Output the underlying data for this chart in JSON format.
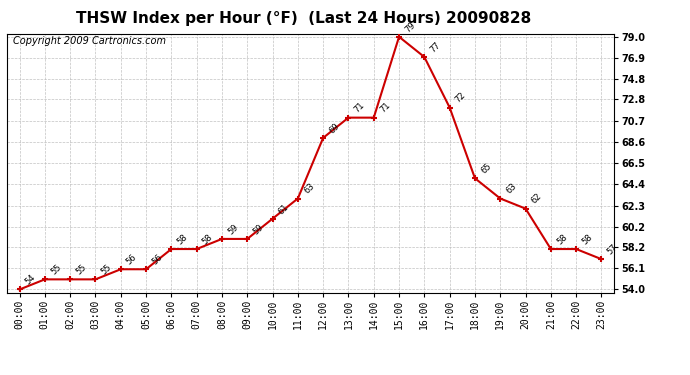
{
  "title": "THSW Index per Hour (°F)  (Last 24 Hours) 20090828",
  "copyright": "Copyright 2009 Cartronics.com",
  "hours": [
    "00:00",
    "01:00",
    "02:00",
    "03:00",
    "04:00",
    "05:00",
    "06:00",
    "07:00",
    "08:00",
    "09:00",
    "10:00",
    "11:00",
    "12:00",
    "13:00",
    "14:00",
    "15:00",
    "16:00",
    "17:00",
    "18:00",
    "19:00",
    "20:00",
    "21:00",
    "22:00",
    "23:00"
  ],
  "values": [
    54,
    55,
    55,
    55,
    56,
    56,
    58,
    58,
    59,
    59,
    61,
    63,
    69,
    71,
    71,
    79,
    77,
    72,
    65,
    63,
    62,
    58,
    58,
    57
  ],
  "ylim_min": 54.0,
  "ylim_max": 79.0,
  "yticks": [
    54.0,
    56.1,
    58.2,
    60.2,
    62.3,
    64.4,
    66.5,
    68.6,
    70.7,
    72.8,
    74.8,
    76.9,
    79.0
  ],
  "line_color": "#cc0000",
  "marker_color": "#cc0000",
  "bg_color": "#ffffff",
  "grid_color": "#bbbbbb",
  "title_fontsize": 11,
  "copyright_fontsize": 7,
  "label_fontsize": 7,
  "annot_fontsize": 6
}
